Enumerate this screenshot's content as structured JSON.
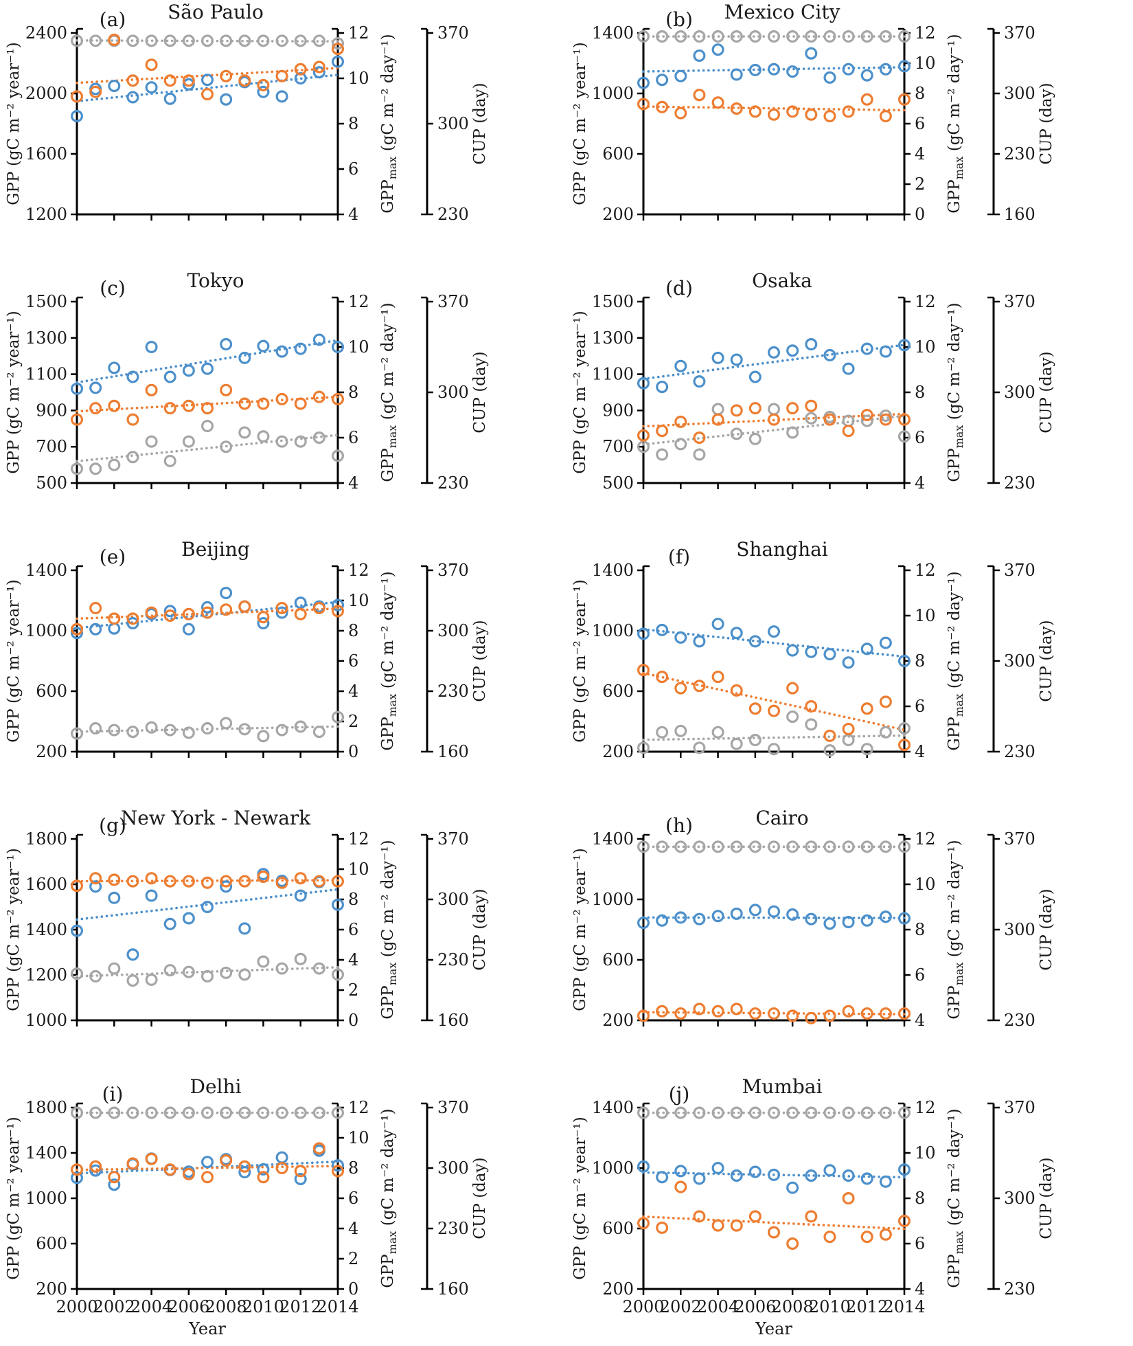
{
  "figure": {
    "background": "#ffffff",
    "colors": {
      "gpp": "#4C90CB",
      "gppmax": "#ED7D31",
      "cup": "#A6A6A6",
      "axis": "#000000"
    },
    "x_axis": {
      "label": "Year",
      "start": 2000,
      "end": 2014,
      "tick_step": 2,
      "tick_labels": [
        "2000",
        "2002",
        "2004",
        "2006",
        "2008",
        "2010",
        "2012",
        "2014"
      ]
    },
    "ylabels": {
      "gpp": "GPP (gC m⁻² year⁻¹)",
      "gppmax_prefix": "GPP",
      "gppmax_sub": "max",
      "gppmax_suffix": " (gC m⁻² day⁻¹)",
      "cup": "CUP (day)"
    },
    "years": [
      2000,
      2001,
      2002,
      2003,
      2004,
      2005,
      2006,
      2007,
      2008,
      2009,
      2010,
      2011,
      2012,
      2013,
      2014
    ]
  },
  "chart_data": [
    {
      "type": "scatter",
      "letter": "(a)",
      "title": "São Paulo",
      "gpp_axis": {
        "min": 1200,
        "max": 2400,
        "ticks": [
          1200,
          1600,
          2000,
          2400
        ]
      },
      "gppmax_axis": {
        "min": 4,
        "max": 12,
        "ticks": [
          4,
          6,
          8,
          10,
          12
        ]
      },
      "cup_axis": {
        "min": 230,
        "max": 370,
        "ticks": [
          230,
          300,
          370
        ]
      },
      "gpp": [
        1850,
        2030,
        2050,
        1975,
        2040,
        1965,
        2060,
        2090,
        1960,
        2075,
        2010,
        1980,
        2100,
        2140,
        2210
      ],
      "gppmax": [
        9.2,
        9.4,
        11.7,
        9.9,
        10.6,
        9.9,
        9.9,
        9.3,
        10.1,
        9.9,
        9.7,
        10.1,
        10.4,
        10.5,
        11.3
      ],
      "cup": [
        364,
        364,
        364,
        364,
        364,
        364,
        364,
        364,
        364,
        364,
        364,
        364,
        364,
        364,
        362
      ]
    },
    {
      "type": "scatter",
      "letter": "(b)",
      "title": "Mexico City",
      "gpp_axis": {
        "min": 200,
        "max": 1400,
        "ticks": [
          200,
          600,
          1000,
          1400
        ]
      },
      "gppmax_axis": {
        "min": 0,
        "max": 12,
        "ticks": [
          0,
          2,
          4,
          6,
          8,
          10,
          12
        ]
      },
      "cup_axis": {
        "min": 160,
        "max": 370,
        "ticks": [
          160,
          230,
          300,
          370
        ]
      },
      "gpp": [
        1070,
        1090,
        1115,
        1250,
        1290,
        1125,
        1155,
        1160,
        1145,
        1265,
        1105,
        1160,
        1120,
        1160,
        1180
      ],
      "gppmax": [
        7.3,
        7.1,
        6.7,
        7.9,
        7.4,
        7.0,
        6.8,
        6.6,
        6.8,
        6.6,
        6.5,
        6.8,
        7.6,
        6.5,
        7.6
      ],
      "cup": [
        366,
        366,
        366,
        366,
        366,
        366,
        366,
        366,
        366,
        366,
        366,
        366,
        366,
        366,
        366
      ]
    },
    {
      "type": "scatter",
      "letter": "(c)",
      "title": "Tokyo",
      "gpp_axis": {
        "min": 500,
        "max": 1500,
        "ticks": [
          500,
          700,
          900,
          1100,
          1300,
          1500
        ]
      },
      "gppmax_axis": {
        "min": 4,
        "max": 12,
        "ticks": [
          4,
          6,
          8,
          10,
          12
        ]
      },
      "cup_axis": {
        "min": 230,
        "max": 370,
        "ticks": [
          230,
          300,
          370
        ]
      },
      "gpp": [
        1020,
        1025,
        1135,
        1085,
        1250,
        1085,
        1120,
        1130,
        1265,
        1190,
        1255,
        1225,
        1240,
        1290,
        1250
      ],
      "gppmax": [
        6.8,
        7.3,
        7.4,
        6.8,
        8.1,
        7.3,
        7.4,
        7.3,
        8.1,
        7.5,
        7.5,
        7.7,
        7.5,
        7.8,
        7.7
      ],
      "cup": [
        241,
        241,
        244,
        250,
        262,
        247,
        262,
        274,
        258,
        269,
        266,
        262,
        262,
        265,
        251
      ]
    },
    {
      "type": "scatter",
      "letter": "(d)",
      "title": "Osaka",
      "gpp_axis": {
        "min": 500,
        "max": 1500,
        "ticks": [
          500,
          700,
          900,
          1100,
          1300,
          1500
        ]
      },
      "gppmax_axis": {
        "min": 4,
        "max": 12,
        "ticks": [
          4,
          6,
          8,
          10,
          12
        ]
      },
      "cup_axis": {
        "min": 230,
        "max": 370,
        "ticks": [
          230,
          300,
          370
        ]
      },
      "gpp": [
        1050,
        1030,
        1145,
        1060,
        1190,
        1180,
        1085,
        1220,
        1230,
        1265,
        1205,
        1130,
        1240,
        1225,
        1260
      ],
      "gppmax": [
        6.1,
        6.3,
        6.7,
        6.0,
        6.8,
        7.2,
        7.3,
        6.8,
        7.3,
        7.4,
        6.8,
        6.3,
        7.0,
        6.8,
        6.8
      ],
      "cup": [
        258,
        252,
        260,
        252,
        287,
        268,
        264,
        287,
        269,
        280,
        281,
        278,
        278,
        282,
        266
      ]
    },
    {
      "type": "scatter",
      "letter": "(e)",
      "title": "Beijing",
      "gpp_axis": {
        "min": 200,
        "max": 1400,
        "ticks": [
          200,
          600,
          1000,
          1400
        ]
      },
      "gppmax_axis": {
        "min": 0,
        "max": 12,
        "ticks": [
          0,
          2,
          4,
          6,
          8,
          10,
          12
        ]
      },
      "cup_axis": {
        "min": 160,
        "max": 370,
        "ticks": [
          160,
          230,
          300,
          370
        ]
      },
      "gpp": [
        985,
        1010,
        1015,
        1050,
        1110,
        1130,
        1010,
        1155,
        1250,
        1160,
        1050,
        1120,
        1185,
        1160,
        1170
      ],
      "gppmax": [
        8.1,
        9.5,
        8.8,
        8.8,
        9.2,
        9.0,
        9.1,
        9.2,
        9.4,
        9.6,
        8.9,
        9.5,
        9.1,
        9.5,
        9.3
      ],
      "cup": [
        181,
        187,
        185,
        183,
        188,
        185,
        182,
        187,
        193,
        186,
        178,
        185,
        189,
        183,
        200
      ]
    },
    {
      "type": "scatter",
      "letter": "(f)",
      "title": "Shanghai",
      "gpp_axis": {
        "min": 200,
        "max": 1400,
        "ticks": [
          200,
          600,
          1000,
          1400
        ]
      },
      "gppmax_axis": {
        "min": 4,
        "max": 12,
        "ticks": [
          4,
          6,
          8,
          10,
          12
        ]
      },
      "cup_axis": {
        "min": 230,
        "max": 370,
        "ticks": [
          230,
          300,
          370
        ]
      },
      "gpp": [
        980,
        1005,
        955,
        930,
        1045,
        985,
        930,
        995,
        870,
        860,
        845,
        790,
        880,
        920,
        800
      ],
      "gppmax": [
        7.6,
        7.3,
        6.8,
        6.9,
        7.3,
        6.7,
        5.9,
        5.8,
        6.8,
        6.0,
        4.7,
        5.0,
        5.9,
        6.2,
        4.3
      ],
      "cup": [
        233,
        245,
        246,
        233,
        245,
        236,
        239,
        232,
        257,
        251,
        231,
        239,
        232,
        245,
        248
      ]
    },
    {
      "type": "scatter",
      "letter": "(g)",
      "title": "New York - Newark",
      "gpp_axis": {
        "min": 1000,
        "max": 1800,
        "ticks": [
          1000,
          1200,
          1400,
          1600,
          1800
        ]
      },
      "gppmax_axis": {
        "min": 0,
        "max": 12,
        "ticks": [
          0,
          2,
          4,
          6,
          8,
          10,
          12
        ]
      },
      "cup_axis": {
        "min": 160,
        "max": 370,
        "ticks": [
          160,
          230,
          300,
          370
        ]
      },
      "gpp": [
        1395,
        1590,
        1540,
        1290,
        1550,
        1425,
        1450,
        1500,
        1590,
        1405,
        1645,
        1615,
        1550,
        1610,
        1510
      ],
      "gppmax": [
        8.9,
        9.4,
        9.3,
        9.2,
        9.4,
        9.2,
        9.2,
        9.1,
        9.2,
        9.2,
        9.5,
        9.1,
        9.4,
        9.2,
        9.2
      ],
      "cup": [
        214,
        211,
        220,
        206,
        207,
        218,
        216,
        211,
        215,
        213,
        228,
        220,
        231,
        220,
        213
      ]
    },
    {
      "type": "scatter",
      "letter": "(h)",
      "title": "Cairo",
      "gpp_axis": {
        "min": 200,
        "max": 1400,
        "ticks": [
          200,
          600,
          1000,
          1400
        ]
      },
      "gppmax_axis": {
        "min": 4,
        "max": 12,
        "ticks": [
          4,
          6,
          8,
          10,
          12
        ]
      },
      "cup_axis": {
        "min": 230,
        "max": 370,
        "ticks": [
          230,
          300,
          370
        ]
      },
      "gpp": [
        845,
        860,
        880,
        870,
        890,
        905,
        930,
        920,
        900,
        870,
        840,
        850,
        860,
        885,
        875
      ],
      "gppmax": [
        4.2,
        4.4,
        4.3,
        4.5,
        4.4,
        4.5,
        4.3,
        4.3,
        4.2,
        4.1,
        4.2,
        4.4,
        4.3,
        4.3,
        4.3
      ],
      "cup": [
        364,
        364,
        364,
        364,
        364,
        364,
        364,
        364,
        364,
        364,
        364,
        364,
        364,
        364,
        364
      ]
    },
    {
      "type": "scatter",
      "letter": "(i)",
      "title": "Delhi",
      "gpp_axis": {
        "min": 200,
        "max": 1800,
        "ticks": [
          200,
          600,
          1000,
          1400,
          1800
        ]
      },
      "gppmax_axis": {
        "min": 0,
        "max": 12,
        "ticks": [
          0,
          2,
          4,
          6,
          8,
          10,
          12
        ]
      },
      "cup_axis": {
        "min": 160,
        "max": 370,
        "ticks": [
          160,
          230,
          300,
          370
        ]
      },
      "gpp": [
        1180,
        1245,
        1120,
        1300,
        1350,
        1250,
        1235,
        1320,
        1345,
        1230,
        1255,
        1360,
        1170,
        1420,
        1290
      ],
      "gppmax": [
        7.9,
        8.1,
        7.4,
        8.3,
        8.6,
        7.9,
        7.6,
        7.4,
        8.5,
        8.1,
        7.4,
        8.0,
        7.8,
        9.3,
        7.8
      ],
      "cup": [
        364,
        364,
        364,
        364,
        364,
        364,
        364,
        364,
        364,
        364,
        364,
        364,
        364,
        364,
        364
      ]
    },
    {
      "type": "scatter",
      "letter": "(j)",
      "title": "Mumbai",
      "gpp_axis": {
        "min": 200,
        "max": 1400,
        "ticks": [
          200,
          600,
          1000,
          1400
        ]
      },
      "gppmax_axis": {
        "min": 4,
        "max": 12,
        "ticks": [
          4,
          6,
          8,
          10,
          12
        ]
      },
      "cup_axis": {
        "min": 230,
        "max": 370,
        "ticks": [
          230,
          300,
          370
        ]
      },
      "gpp": [
        1010,
        940,
        980,
        930,
        1000,
        950,
        975,
        955,
        870,
        950,
        985,
        950,
        930,
        910,
        990
      ],
      "gppmax": [
        6.9,
        6.7,
        8.5,
        7.2,
        6.8,
        6.8,
        7.2,
        6.5,
        6.0,
        7.2,
        6.3,
        8.0,
        6.3,
        6.4,
        7.0
      ],
      "cup": [
        366,
        366,
        366,
        366,
        366,
        366,
        366,
        366,
        366,
        366,
        366,
        366,
        366,
        366,
        366
      ]
    }
  ]
}
